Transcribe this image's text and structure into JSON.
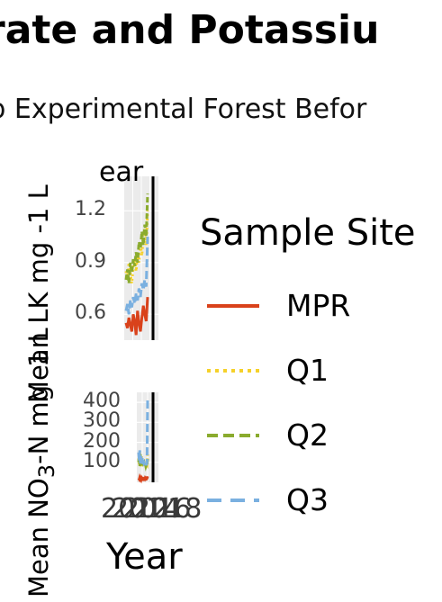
{
  "chart": {
    "title": "rate and Potassiu",
    "subtitle": "o Experimental Forest Befor",
    "facet_label": "ear",
    "x_axis_title": "Year",
    "y_axis_title_top": "Mean LK mg -1 L",
    "y_axis_title_bottom": "Mean NO3-N mg -1 L",
    "x_tick_labels": [
      "2012",
      "2014",
      "2016",
      "2018"
    ],
    "legend_title": "Sample Site"
  },
  "chart_data": [
    {
      "type": "line",
      "panel": "top",
      "ylabel": "Mean LK mg -1 L",
      "yticks": [
        0.6,
        0.9,
        1.2
      ],
      "ylim": [
        0.45,
        1.4
      ],
      "grid": true,
      "series": [
        {
          "name": "MPR",
          "color": "#d9421b",
          "dash": "solid",
          "values": [
            0.55,
            0.52,
            0.58,
            0.54,
            0.5,
            0.6,
            0.56,
            0.48,
            0.62,
            0.55,
            0.5,
            0.58,
            0.65,
            0.6,
            0.56,
            0.7
          ]
        },
        {
          "name": "Q1",
          "color": "#f5d12a",
          "dash": "dotted",
          "values": [
            0.85,
            0.8,
            0.9,
            0.84,
            0.78,
            0.88,
            0.92,
            0.85,
            0.95,
            0.9,
            1.0,
            0.94,
            1.05,
            1.1,
            1.0,
            1.2
          ]
        },
        {
          "name": "Q2",
          "color": "#8aab2e",
          "dash": "dashed",
          "values": [
            0.8,
            0.86,
            0.78,
            0.9,
            0.84,
            0.92,
            0.88,
            0.96,
            0.9,
            1.02,
            0.98,
            1.08,
            1.0,
            1.12,
            1.05,
            1.3
          ]
        },
        {
          "name": "Q3",
          "color": "#7ab0e0",
          "dash": "longdash",
          "values": [
            0.62,
            0.66,
            0.6,
            0.68,
            0.64,
            0.7,
            0.66,
            0.72,
            0.68,
            0.75,
            0.7,
            0.78,
            0.74,
            0.8,
            0.76,
            1.05
          ]
        }
      ]
    },
    {
      "type": "line",
      "panel": "bottom",
      "ylabel": "Mean NO3-N mg -1 L",
      "yticks": [
        100,
        200,
        300,
        400
      ],
      "ylim": [
        0,
        450
      ],
      "grid": true,
      "series": [
        {
          "name": "MPR",
          "color": "#d9421b",
          "dash": "solid",
          "values": [
            20,
            15,
            25,
            18,
            12,
            22,
            16,
            14,
            20,
            18,
            15,
            22,
            18,
            16,
            20,
            30
          ]
        },
        {
          "name": "Q1",
          "color": "#f5d12a",
          "dash": "dotted",
          "values": [
            120,
            90,
            150,
            100,
            80,
            130,
            95,
            85,
            110,
            90,
            80,
            100,
            85,
            95,
            90,
            140
          ]
        },
        {
          "name": "Q2",
          "color": "#8aab2e",
          "dash": "dashed",
          "values": [
            100,
            130,
            80,
            140,
            90,
            120,
            85,
            110,
            95,
            100,
            85,
            95,
            80,
            90,
            85,
            120
          ]
        },
        {
          "name": "Q3",
          "color": "#7ab0e0",
          "dash": "longdash",
          "values": [
            150,
            110,
            160,
            90,
            130,
            100,
            120,
            85,
            110,
            95,
            100,
            90,
            95,
            85,
            100,
            420
          ]
        }
      ]
    }
  ]
}
